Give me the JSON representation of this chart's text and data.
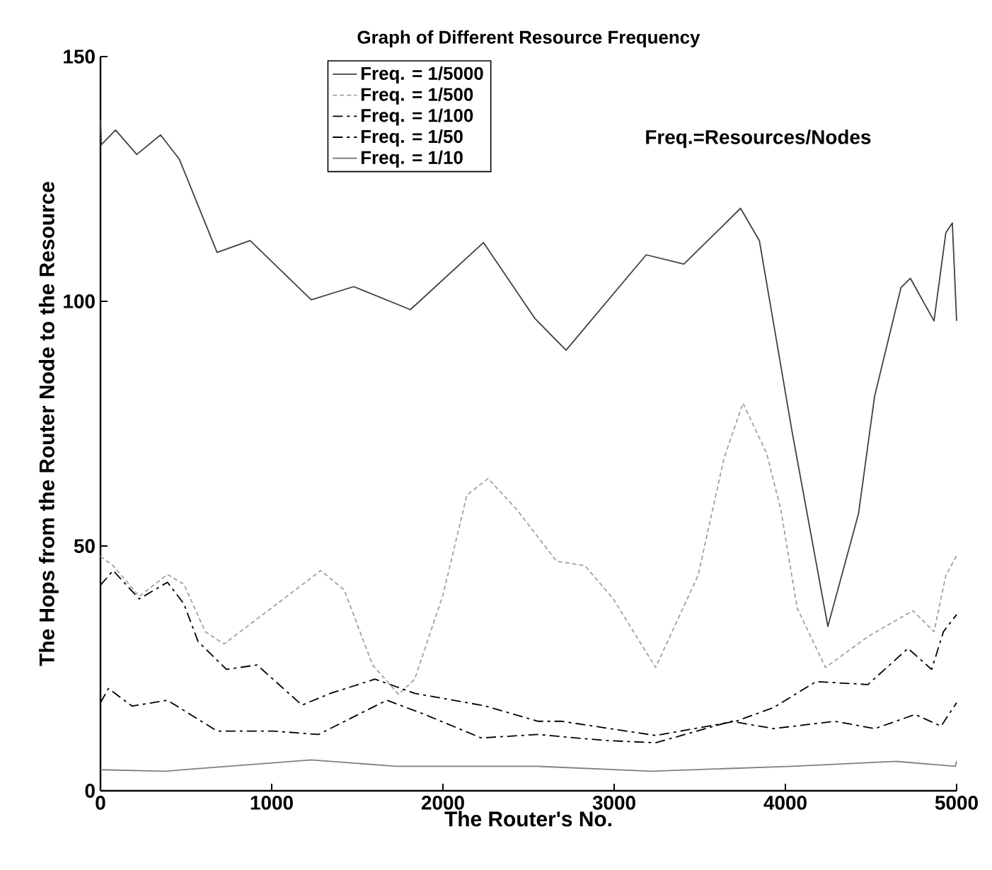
{
  "chart_data": {
    "type": "line",
    "title": "Graph of Different Resource Frequency",
    "xlabel": "The Router's No.",
    "ylabel": "The Hops from the Router Node to the Resource",
    "xlim": [
      0,
      5000
    ],
    "ylim": [
      0,
      150
    ],
    "xticks": [
      0,
      1000,
      2000,
      3000,
      4000,
      5000
    ],
    "yticks": [
      0,
      50,
      100,
      150
    ],
    "grid": false,
    "legend": "top",
    "marker": "none",
    "annotations": [
      "Freq.=Resources/Nodes"
    ],
    "series": [
      {
        "name": "Freq. = 1/5000",
        "color": "#404040",
        "line_style": "solid",
        "x": [
          0,
          5,
          88,
          212,
          351,
          461,
          681,
          874,
          1231,
          1479,
          1810,
          2237,
          2537,
          2719,
          3187,
          3407,
          3738,
          3848,
          4041,
          4248,
          4427,
          4521,
          4675,
          4730,
          4868,
          4937,
          4975,
          5000
        ],
        "values": [
          137,
          132,
          135,
          130,
          134,
          129,
          110,
          112.4,
          100.3,
          103,
          98.3,
          112,
          96.5,
          90,
          109.5,
          107.6,
          119,
          112.4,
          73,
          33.6,
          56.6,
          80.6,
          102.8,
          104.7,
          96,
          114,
          116,
          96
        ]
      },
      {
        "name": "Freq. = 1/500",
        "color": "#a0a0a0",
        "line_style": "dotted",
        "x": [
          0,
          74,
          226,
          391,
          487,
          612,
          722,
          1287,
          1424,
          1589,
          1741,
          1835,
          2000,
          2140,
          2264,
          2430,
          2664,
          2829,
          2995,
          3242,
          3490,
          3642,
          3752,
          3890,
          3973,
          4069,
          4234,
          4482,
          4744,
          4868,
          4937,
          5000
        ],
        "values": [
          47.9,
          46,
          39.7,
          44.2,
          42.2,
          32.5,
          30,
          45,
          41,
          25.7,
          19.7,
          22.8,
          40,
          60.4,
          63.8,
          57.5,
          46.9,
          46,
          39.2,
          25.2,
          44,
          68,
          79.2,
          69,
          57.5,
          37.3,
          25.2,
          31.5,
          36.8,
          32.5,
          44,
          48
        ]
      },
      {
        "name": "Freq. = 1/100",
        "color": "#000000",
        "line_style": "dashed",
        "x": [
          0,
          74,
          226,
          391,
          487,
          570,
          736,
          915,
          1177,
          1342,
          1603,
          1837,
          2251,
          2554,
          2692,
          3242,
          3711,
          3931,
          4179,
          4482,
          4716,
          4854,
          4923,
          5000
        ],
        "values": [
          42,
          45,
          39.2,
          42.6,
          38.2,
          30.5,
          24.8,
          25.7,
          17.5,
          19.9,
          22.8,
          19.9,
          17.3,
          14.2,
          14.2,
          11.3,
          14.2,
          17,
          22.3,
          21.7,
          29.1,
          24.8,
          32.5,
          36
        ]
      },
      {
        "name": "Freq. = 1/50",
        "color": "#000000",
        "line_style": "dashed",
        "x": [
          0,
          47,
          184,
          391,
          681,
          1012,
          1273,
          1672,
          1893,
          2223,
          2554,
          2940,
          3242,
          3684,
          3931,
          4289,
          4523,
          4758,
          4909,
          5000
        ],
        "values": [
          18,
          20.9,
          17.3,
          18.5,
          12.2,
          12.2,
          11.5,
          18.5,
          15.6,
          10.8,
          11.5,
          10.3,
          9.8,
          14.2,
          12.7,
          14.2,
          12.7,
          15.6,
          13.2,
          18
        ]
      },
      {
        "name": "Freq. = 1/10",
        "color": "#808080",
        "line_style": "solid",
        "x": [
          0,
          377,
          1231,
          1727,
          2554,
          3215,
          4041,
          4647,
          4992,
          5000
        ],
        "values": [
          4.3,
          4,
          6.3,
          5,
          5,
          4,
          5,
          6,
          5,
          6
        ]
      }
    ]
  }
}
